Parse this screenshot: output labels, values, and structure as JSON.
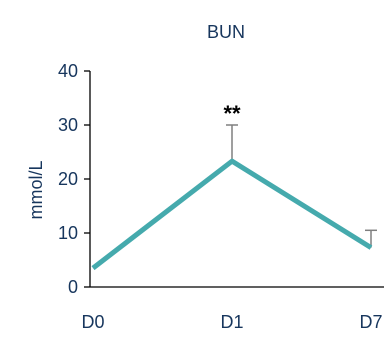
{
  "chart_data": {
    "type": "line",
    "title": "BUN",
    "xlabel": "",
    "ylabel": "mmol/L",
    "categories": [
      "D0",
      "D1",
      "D7"
    ],
    "series": [
      {
        "values": [
          3.5,
          23.3,
          7.3
        ],
        "error_upper": [
          0,
          6.7,
          3.2
        ],
        "color": "#45aaad"
      }
    ],
    "ylim": [
      0,
      40
    ],
    "yticks": [
      0,
      10,
      20,
      30,
      40
    ],
    "grid": false,
    "annotations": [
      {
        "category": "D1",
        "text": "**"
      }
    ]
  },
  "colors": {
    "axis": "#000000",
    "text": "#17365d",
    "error_bar": "#7f7f7f"
  }
}
